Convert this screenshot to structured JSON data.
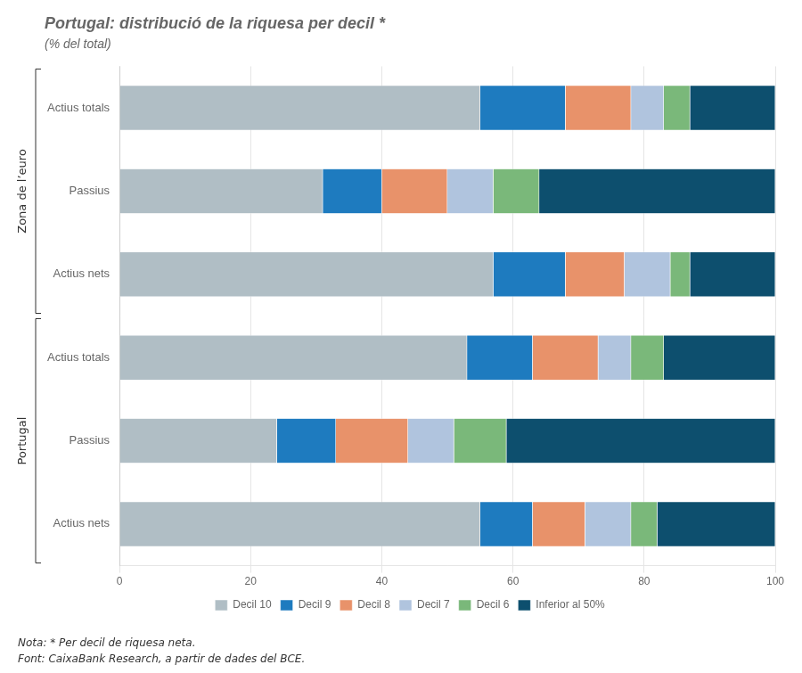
{
  "chart_data": {
    "type": "bar",
    "orientation": "horizontal",
    "stacked": true,
    "title": "Portugal: distribució de la riquesa per decil *",
    "subtitle": "(% del total)",
    "categories": [
      "Actius totals",
      "Passius",
      "Actius nets",
      "Actius totals",
      "Passius",
      "Actius nets"
    ],
    "groups": [
      {
        "name": "Zona de l’euro",
        "size": 3
      },
      {
        "name": "Portugal",
        "size": 3
      }
    ],
    "series": [
      {
        "name": "Decil 10",
        "color": "#b0bec5",
        "values": [
          55,
          31,
          57,
          53,
          24,
          55
        ]
      },
      {
        "name": "Decil 9",
        "color": "#1e7bbf",
        "values": [
          13,
          9,
          11,
          10,
          9,
          8
        ]
      },
      {
        "name": "Decil 8",
        "color": "#e8926a",
        "values": [
          10,
          10,
          9,
          10,
          11,
          8
        ]
      },
      {
        "name": "Decil 7",
        "color": "#b0c4de",
        "values": [
          5,
          7,
          7,
          5,
          7,
          7
        ]
      },
      {
        "name": "Decil 6",
        "color": "#7ab87a",
        "values": [
          4,
          7,
          3,
          5,
          8,
          4
        ]
      },
      {
        "name": "Inferior al 50%",
        "color": "#0d4f6e",
        "values": [
          13,
          36,
          13,
          17,
          41,
          18
        ]
      }
    ],
    "xlim": [
      0,
      100
    ],
    "xticks": [
      0,
      20,
      40,
      60,
      80,
      100
    ],
    "grid": true,
    "legend": "bottom",
    "annotations": [
      "Nota: * Per decil de riquesa neta.",
      "Font: CaixaBank Research, a partir de dades del BCE."
    ]
  }
}
